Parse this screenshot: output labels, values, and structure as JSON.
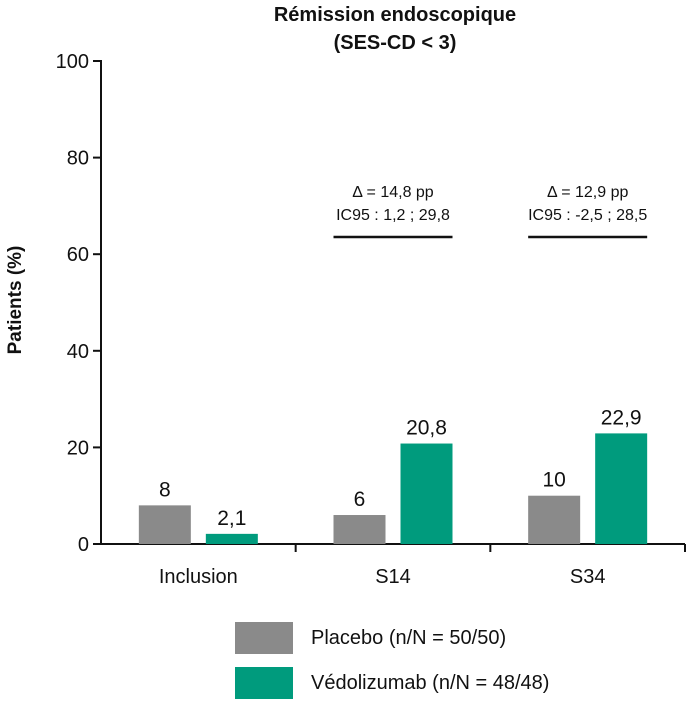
{
  "chart_data": {
    "type": "bar",
    "title": "Rémission endoscopique",
    "subtitle": "(SES-CD < 3)",
    "ylabel": "Patients (%)",
    "xlabel": "",
    "ylim": [
      0,
      100
    ],
    "yticks": [
      0,
      20,
      40,
      60,
      80,
      100
    ],
    "grid": false,
    "legend_position": "bottom",
    "categories": [
      "Inclusion",
      "S14",
      "S34"
    ],
    "series": [
      {
        "name": "Placebo (n/N = 50/50)",
        "color": "#8a8a8a",
        "values": [
          8,
          6,
          10
        ],
        "labels": [
          "8",
          "6",
          "10"
        ]
      },
      {
        "name": "Védolizumab (n/N = 48/48)",
        "color": "#009b7d",
        "values": [
          2.1,
          20.8,
          22.9
        ],
        "labels": [
          "2,1",
          "20,8",
          "22,9"
        ]
      }
    ],
    "annotations": [
      {
        "category": "S14",
        "line1": "Δ = 14,8 pp",
        "line2": "IC95 : 1,2 ; 29,8"
      },
      {
        "category": "S34",
        "line1": "Δ = 12,9 pp",
        "line2": "IC95 : -2,5 ; 28,5"
      }
    ]
  }
}
